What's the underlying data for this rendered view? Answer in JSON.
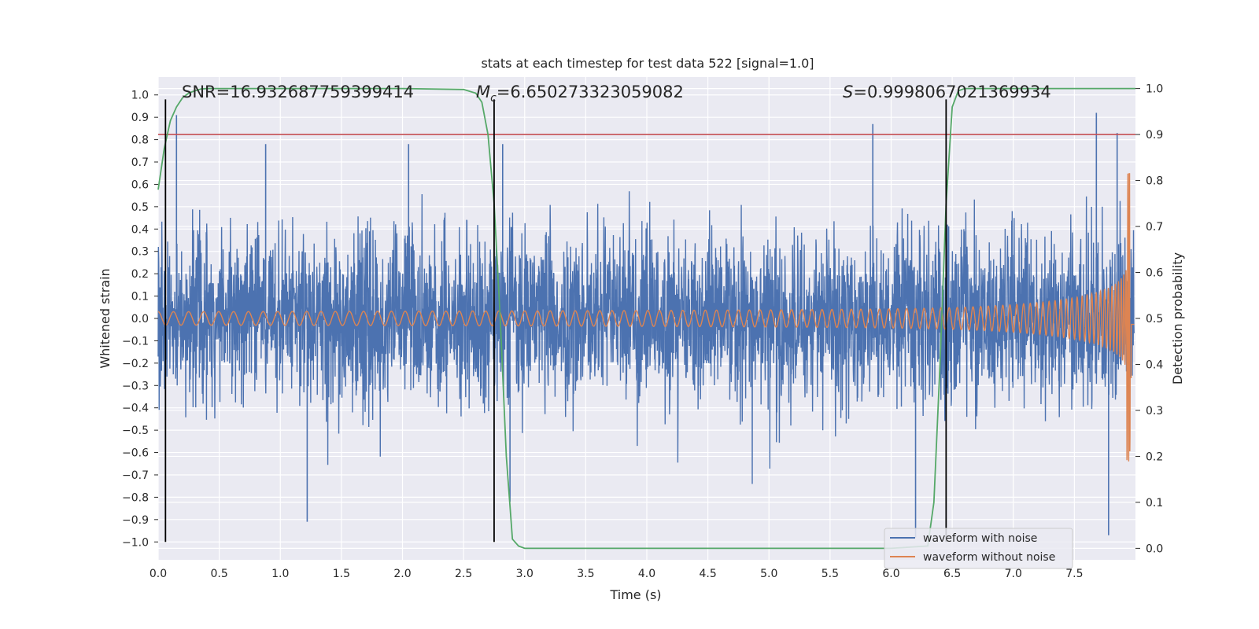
{
  "chart_data": {
    "type": "line",
    "title": "stats at each timestep for test data 522 [signal=1.0]",
    "xlabel": "Time (s)",
    "ylabel_left": "Whitened strain",
    "ylabel_right": "Detection probability",
    "xlim": [
      0.0,
      8.0
    ],
    "ylim_left": [
      -1.08,
      1.08
    ],
    "ylim_right": [
      -0.025,
      1.025
    ],
    "x_ticks": [
      "0.0",
      "0.5",
      "1.0",
      "1.5",
      "2.0",
      "2.5",
      "3.0",
      "3.5",
      "4.0",
      "4.5",
      "5.0",
      "5.5",
      "6.0",
      "6.5",
      "7.0",
      "7.5"
    ],
    "x_tick_values": [
      0.0,
      0.5,
      1.0,
      1.5,
      2.0,
      2.5,
      3.0,
      3.5,
      4.0,
      4.5,
      5.0,
      5.5,
      6.0,
      6.5,
      7.0,
      7.5
    ],
    "y_left_ticks": [
      "1.0",
      "0.9",
      "0.8",
      "0.7",
      "0.6",
      "0.5",
      "0.4",
      "0.3",
      "0.2",
      "0.1",
      "0.0",
      "−0.1",
      "−0.2",
      "−0.3",
      "−0.4",
      "−0.5",
      "−0.6",
      "−0.7",
      "−0.8",
      "−0.9",
      "−1.0"
    ],
    "y_left_tick_values": [
      1.0,
      0.9,
      0.8,
      0.7,
      0.6,
      0.5,
      0.4,
      0.3,
      0.2,
      0.1,
      0.0,
      -0.1,
      -0.2,
      -0.3,
      -0.4,
      -0.5,
      -0.6,
      -0.7,
      -0.8,
      -0.9,
      -1.0
    ],
    "y_right_ticks": [
      "1.0",
      "0.9",
      "0.8",
      "0.7",
      "0.6",
      "0.5",
      "0.4",
      "0.3",
      "0.2",
      "0.1",
      "0.0"
    ],
    "y_right_tick_values": [
      1.0,
      0.9,
      0.8,
      0.7,
      0.6,
      0.5,
      0.4,
      0.3,
      0.2,
      0.1,
      0.0
    ],
    "grid": true,
    "legend_position": "bottom-right",
    "annotations": {
      "snr": "SNR=16.932687759399414",
      "mc_symbol": "M",
      "mc_sub": "c",
      "mc_value": "=6.650273323059082",
      "s_symbol": "S",
      "s_value": "=0.9998067021369934"
    },
    "series": [
      {
        "name": "waveform with noise",
        "color": "#4c72b0",
        "kind": "noise",
        "x_range": [
          0.0,
          7.99
        ],
        "typical_amplitude": 0.45,
        "peaks": [
          [
            0.15,
            0.91
          ],
          [
            0.88,
            0.78
          ],
          [
            1.22,
            -0.91
          ],
          [
            2.05,
            0.78
          ],
          [
            2.82,
            0.78
          ],
          [
            2.88,
            -0.82
          ],
          [
            5.85,
            0.87
          ],
          [
            6.2,
            -0.98
          ],
          [
            7.68,
            0.92
          ],
          [
            7.78,
            -0.97
          ],
          [
            7.85,
            0.83
          ]
        ]
      },
      {
        "name": "waveform without noise",
        "color": "#dd8452",
        "kind": "chirp",
        "x_range": [
          0.0,
          7.99
        ],
        "start_amplitude": 0.03,
        "peak_amplitude": 0.65,
        "peak_trough": -0.48,
        "merger_time": 7.96
      },
      {
        "name": "detection probability",
        "color": "#55a868",
        "axis": "right",
        "x": [
          0.0,
          0.05,
          0.1,
          0.15,
          0.2,
          0.25,
          0.3,
          0.35,
          0.4,
          0.5,
          1.0,
          1.5,
          2.0,
          2.5,
          2.6,
          2.65,
          2.7,
          2.75,
          2.8,
          2.85,
          2.9,
          2.95,
          3.0,
          4.0,
          5.0,
          6.0,
          6.3,
          6.35,
          6.4,
          6.45,
          6.5,
          6.55,
          6.6,
          6.65,
          7.0,
          7.5,
          8.0
        ],
        "y": [
          0.78,
          0.87,
          0.93,
          0.96,
          0.98,
          0.99,
          0.995,
          0.999,
          1.0,
          1.0,
          1.0,
          1.0,
          1.0,
          0.998,
          0.99,
          0.97,
          0.9,
          0.75,
          0.5,
          0.2,
          0.02,
          0.005,
          0.0,
          0.0,
          0.0,
          0.0,
          0.005,
          0.1,
          0.4,
          0.75,
          0.96,
          0.995,
          1.0,
          1.0,
          1.0,
          1.0,
          1.0
        ]
      }
    ],
    "threshold_line": {
      "value": 0.9,
      "axis": "right",
      "color": "#c44e52"
    },
    "vertical_lines": [
      0.06,
      2.75,
      6.45
    ]
  }
}
